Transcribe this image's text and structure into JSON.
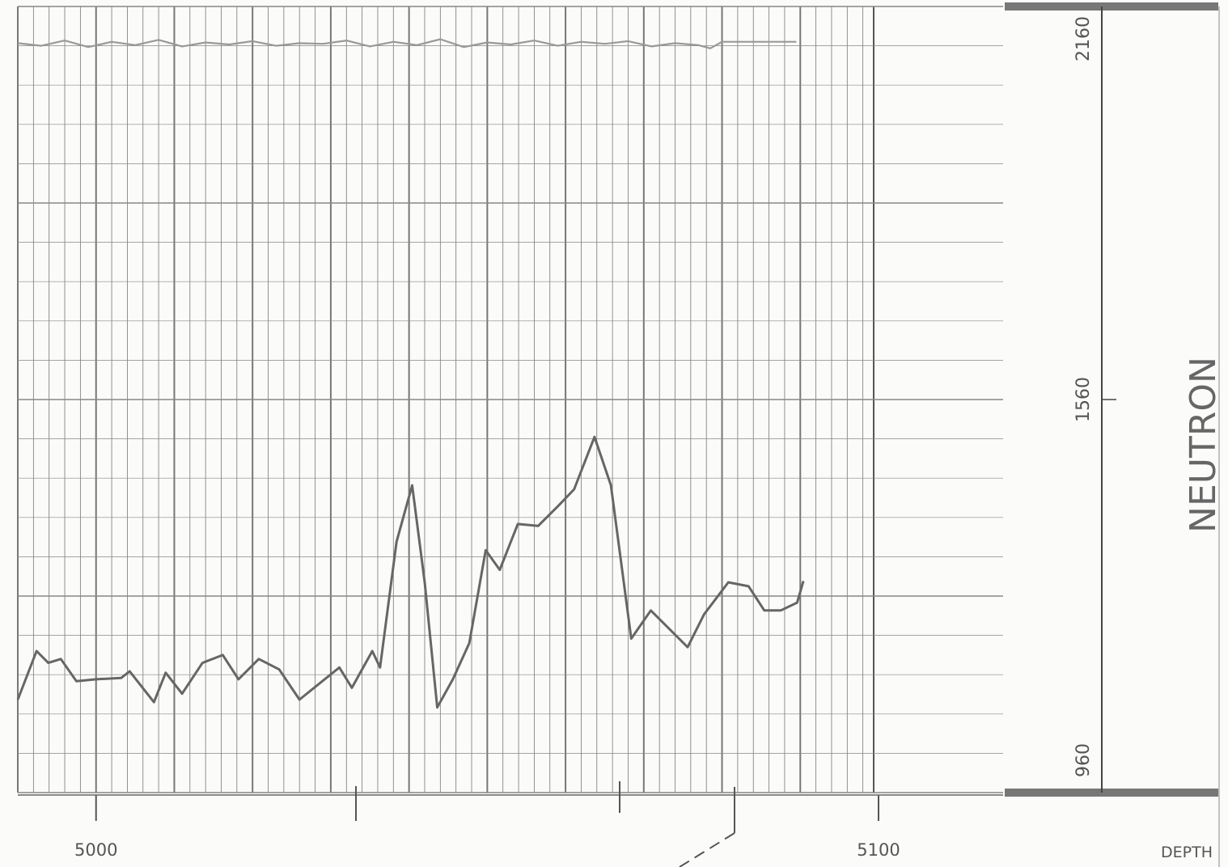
{
  "chart_data": {
    "type": "line",
    "title": "NEUTRON",
    "xlabel": "DEPTH",
    "xlim": [
      4990,
      5100
    ],
    "xticks": [
      5000,
      5100
    ],
    "ylim": [
      960,
      2160
    ],
    "yticks": [
      960,
      1560,
      2160
    ],
    "grid": true,
    "series": [
      {
        "name": null,
        "color": "#666666",
        "x": [
          4990.0,
          4992.4,
          4993.9,
          4995.5,
          4997.5,
          5000,
          5003.2,
          5004.3,
          5007.4,
          5008.9,
          5011.0,
          5013.6,
          5016.2,
          5018.2,
          5020.8,
          5023.4,
          5026.0,
          5028.6,
          5031.1,
          5032.7,
          5035.3,
          5036.3,
          5038.4,
          5040.4,
          5042.0,
          5043.6,
          5045.6,
          5047.7,
          5049.8,
          5051.6,
          5053.9,
          5056.5,
          5059.1,
          5061.1,
          5063.7,
          5065.8,
          5068.4,
          5070.9,
          5073.5,
          5075.6,
          5077.7,
          5080.8,
          5083.4,
          5085.4,
          5087.5,
          5089.6,
          5090.4
        ],
        "values": [
          1102,
          1176,
          1158,
          1164,
          1130,
          1133,
          1135,
          1145,
          1098,
          1143,
          1111,
          1158,
          1170,
          1133,
          1164,
          1148,
          1102,
          1127,
          1151,
          1120,
          1176,
          1151,
          1343,
          1429,
          1281,
          1090,
          1133,
          1188,
          1330,
          1300,
          1370,
          1367,
          1398,
          1423,
          1503,
          1429,
          1195,
          1238,
          1207,
          1182,
          1232,
          1281,
          1275,
          1238,
          1238,
          1250,
          1283
        ]
      },
      {
        "name": null,
        "color": "#999999",
        "x": [
          4990.0,
          4993,
          4996,
          4999,
          5002,
          5005,
          5008,
          5011,
          5014,
          5017,
          5020,
          5023,
          5026,
          5029,
          5032,
          5035,
          5038,
          5041,
          5044,
          5047,
          5050,
          5053,
          5056,
          5059,
          5062,
          5065,
          5068,
          5071,
          5074,
          5077,
          5078.5,
          5080,
          5083,
          5086,
          5089.5
        ],
        "values": [
          2104,
          2100,
          2108,
          2098,
          2106,
          2101,
          2109,
          2099,
          2105,
          2102,
          2107,
          2100,
          2104,
          2103,
          2108,
          2099,
          2106,
          2101,
          2110,
          2098,
          2105,
          2102,
          2108,
          2100,
          2106,
          2103,
          2107,
          2099,
          2104,
          2101,
          2096,
          2106,
          2106,
          2106,
          2106
        ]
      }
    ]
  }
}
